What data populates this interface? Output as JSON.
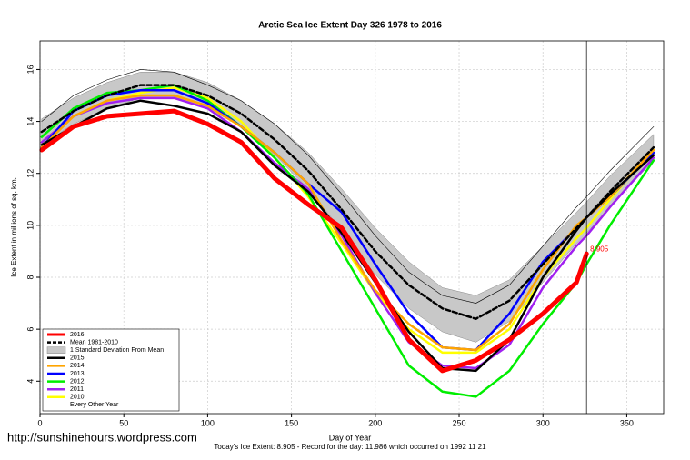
{
  "chart_data": {
    "type": "line",
    "title": "Arctic Sea Ice Extent Day 326 1978 to 2016",
    "x_label": "Day of Year",
    "y_label": "Ice Extent in millions of sq. km.",
    "footer": "Today's Ice Extent: 8.905  - Record for the day: 11.986 which occurred on 1992 11 21",
    "source_url": "http://sunshinehours.wordpress.com",
    "xlim": [
      0,
      372
    ],
    "ylim": [
      2.75,
      17.1
    ],
    "xticks": [
      0,
      50,
      100,
      150,
      200,
      250,
      300,
      350
    ],
    "yticks": [
      4,
      6,
      8,
      10,
      12,
      14,
      16
    ],
    "grid": true,
    "legend": "bottom-left",
    "vline": 326,
    "x": [
      1,
      20,
      40,
      60,
      80,
      100,
      120,
      140,
      160,
      180,
      200,
      220,
      240,
      260,
      280,
      300,
      320,
      326,
      340,
      366
    ],
    "series": [
      {
        "name": "2016",
        "color": "#ff0000",
        "width": 5,
        "values": [
          12.9,
          13.8,
          14.2,
          14.3,
          14.4,
          13.9,
          13.2,
          11.8,
          10.8,
          9.9,
          7.9,
          5.6,
          4.4,
          4.8,
          5.6,
          6.6,
          7.8,
          8.905,
          null,
          null
        ]
      },
      {
        "name": "Mean 1981-2010",
        "color": "#000000",
        "width": 2.5,
        "dashed": true,
        "values": [
          13.6,
          14.4,
          15.0,
          15.4,
          15.4,
          15.0,
          14.3,
          13.3,
          12.1,
          10.6,
          9.0,
          7.7,
          6.8,
          6.4,
          7.1,
          8.5,
          9.9,
          10.3,
          11.3,
          13.0
        ]
      },
      {
        "name": "1 Standard Deviation From Mean",
        "color": "#c8c8c8",
        "band": true,
        "upper": [
          14.1,
          14.9,
          15.5,
          15.9,
          15.9,
          15.5,
          14.8,
          13.9,
          12.8,
          11.4,
          9.9,
          8.6,
          7.6,
          7.3,
          7.9,
          9.2,
          10.5,
          10.9,
          11.9,
          13.5
        ],
        "lower": [
          13.1,
          13.9,
          14.5,
          14.9,
          14.9,
          14.5,
          13.8,
          12.7,
          11.4,
          9.8,
          8.1,
          6.8,
          5.9,
          5.5,
          6.3,
          7.8,
          9.3,
          9.7,
          10.7,
          12.5
        ]
      },
      {
        "name": "2015",
        "color": "#000000",
        "width": 2.5,
        "values": [
          13.1,
          13.8,
          14.5,
          14.8,
          14.6,
          14.3,
          13.6,
          12.3,
          11.3,
          9.7,
          7.8,
          5.9,
          4.5,
          4.4,
          5.6,
          8.0,
          9.8,
          10.3,
          11.2,
          12.7
        ]
      },
      {
        "name": "2014",
        "color": "#ffa500",
        "width": 2.5,
        "values": [
          13.0,
          14.2,
          14.8,
          15.0,
          15.0,
          14.6,
          13.8,
          12.8,
          11.6,
          9.4,
          7.5,
          6.2,
          5.3,
          5.2,
          6.2,
          8.3,
          10.0,
          10.3,
          11.1,
          12.9
        ]
      },
      {
        "name": "2013",
        "color": "#0000ff",
        "width": 2.5,
        "values": [
          13.0,
          14.4,
          15.0,
          15.2,
          15.2,
          14.7,
          13.8,
          12.8,
          11.6,
          10.5,
          8.5,
          6.6,
          5.3,
          5.2,
          6.6,
          8.6,
          9.9,
          10.3,
          11.1,
          12.8
        ]
      },
      {
        "name": "2012",
        "color": "#00ee00",
        "width": 2.5,
        "values": [
          13.4,
          14.5,
          15.1,
          15.2,
          15.4,
          14.8,
          13.8,
          12.6,
          11.2,
          9.0,
          6.8,
          4.6,
          3.6,
          3.4,
          4.4,
          6.2,
          7.8,
          8.5,
          10.0,
          12.5
        ]
      },
      {
        "name": "2011",
        "color": "#a020f0",
        "width": 2.5,
        "values": [
          13.2,
          14.2,
          14.7,
          14.9,
          14.9,
          14.5,
          13.6,
          12.4,
          11.4,
          9.6,
          7.4,
          5.5,
          4.6,
          4.5,
          5.4,
          7.6,
          9.2,
          9.6,
          10.7,
          12.6
        ]
      },
      {
        "name": "2010",
        "color": "#ffff00",
        "width": 2.5,
        "values": [
          13.2,
          14.2,
          14.8,
          15.1,
          15.3,
          14.9,
          14.0,
          12.6,
          11.1,
          9.3,
          7.4,
          6.0,
          5.1,
          5.1,
          6.0,
          8.0,
          9.5,
          9.9,
          11.0,
          12.9
        ]
      },
      {
        "name": "Every Other Year",
        "color": "#000000",
        "width": 0.6,
        "values": [
          14.0,
          15.0,
          15.6,
          16.0,
          15.9,
          15.4,
          14.8,
          13.9,
          12.7,
          11.2,
          9.6,
          8.2,
          7.3,
          7.0,
          7.7,
          9.2,
          10.7,
          11.1,
          12.1,
          13.8
        ]
      }
    ]
  }
}
